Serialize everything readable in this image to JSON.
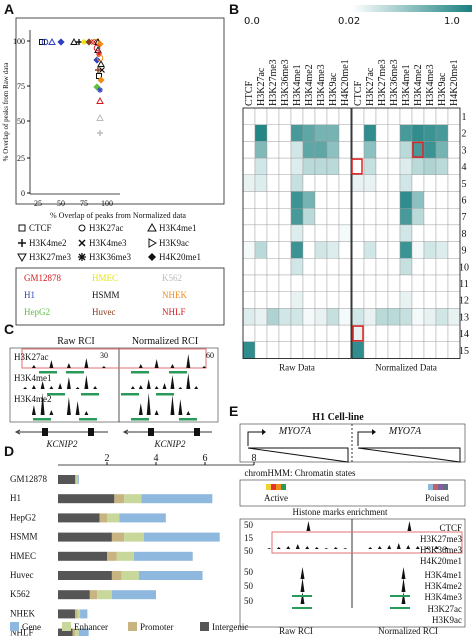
{
  "panels": {
    "A": "A",
    "B": "B",
    "C": "C",
    "D": "D",
    "E": "E"
  },
  "panelA": {
    "xlabel": "% Overlap of peaks from Normalized data",
    "ylabel": "% Overlap of peaks from Raw data",
    "xticks": [
      "25",
      "50",
      "75",
      "100"
    ],
    "yticks": [
      "0",
      "25",
      "50",
      "75",
      "100"
    ],
    "marks": [
      "CTCF",
      "H3K27ac",
      "H3K4me1",
      "H3K4me2",
      "H3K4me3",
      "H3K9ac",
      "H3K27me3",
      "H3K36me3",
      "H4K20me1"
    ],
    "cells": [
      {
        "name": "GM12878",
        "color": "#d7191c"
      },
      {
        "name": "HMEC",
        "color": "#e6e600"
      },
      {
        "name": "K562",
        "color": "#bbbbbb"
      },
      {
        "name": "H1",
        "color": "#2b3fbf"
      },
      {
        "name": "HSMM",
        "color": "#111111"
      },
      {
        "name": "NHEK",
        "color": "#f08c1a"
      },
      {
        "name": "HepG2",
        "color": "#5fbf3f"
      },
      {
        "name": "Huvec",
        "color": "#8b3a1a"
      },
      {
        "name": "NHLF",
        "color": "#d7191c"
      }
    ]
  },
  "panelB": {
    "scale_left": [
      "0.0",
      "0.02"
    ],
    "scale_right": [
      "0.02",
      "1.0"
    ],
    "columns": [
      "CTCF",
      "H3K27ac",
      "H3K27me3",
      "H3K36me3",
      "H3K4me1",
      "H3K4me2",
      "H3K4me3",
      "H3K9ac",
      "H4K20me1"
    ],
    "rows": [
      "1",
      "2",
      "3",
      "4",
      "5",
      "6",
      "7",
      "8",
      "9",
      "10",
      "11",
      "12",
      "13",
      "14",
      "15"
    ],
    "raw_label": "Raw Data",
    "norm_label": "Normalized Data",
    "accent": "#1a8080"
  },
  "panelC": {
    "raw_title": "Raw RCI",
    "norm_title": "Normalized RCI",
    "tracks": [
      "H3K27ac",
      "H3K4me1",
      "H3K4me2"
    ],
    "raw_scale": "30",
    "norm_scale": "60",
    "gene": "KCNIP2"
  },
  "panelD": {
    "xticks": [
      "2",
      "4",
      "6",
      "8"
    ],
    "cells": [
      "GM12878",
      "H1",
      "HepG2",
      "HSMM",
      "HMEC",
      "Huvec",
      "K562",
      "NHEK",
      "NHLF"
    ],
    "legend": [
      {
        "name": "Gene",
        "color": "#8fb8de"
      },
      {
        "name": "Enhancer",
        "color": "#c8d89a"
      },
      {
        "name": "Promoter",
        "color": "#c8b480"
      },
      {
        "name": "Intergenic",
        "color": "#555555"
      }
    ]
  },
  "panelE": {
    "title": "H1 Cell-line",
    "gene": "MYO7A",
    "chromhmm": "chromHMM: Chromatin states",
    "active": "Active",
    "poised": "Poised",
    "histone_title": "Histone marks enrichment",
    "tracks": [
      "CTCF",
      "H3K27me3",
      "H3K36me3",
      "H4K20me1",
      "H3K4me1",
      "H3K4me2",
      "H3K4me3",
      "H3K27ac",
      "H3K9ac"
    ],
    "scales": [
      "50",
      "15",
      "50",
      "50",
      "50",
      "50"
    ],
    "raw_label": "Raw RCI",
    "norm_label": "Normalized RCI"
  }
}
